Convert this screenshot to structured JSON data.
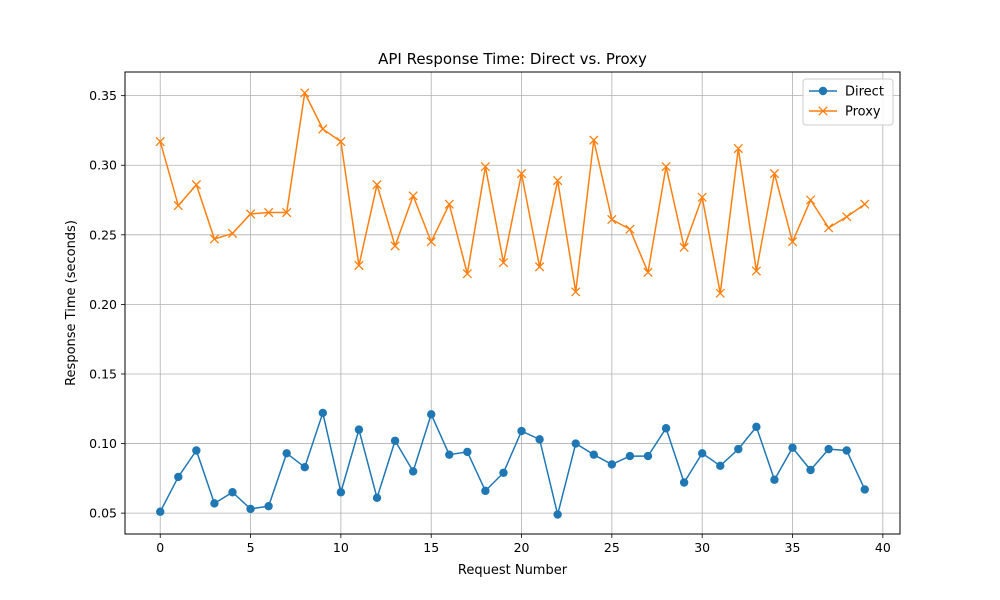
{
  "chart_data": {
    "type": "line",
    "title": "API Response Time: Direct vs. Proxy",
    "xlabel": "Request Number",
    "ylabel": "Response Time (seconds)",
    "xlim": [
      -1.95,
      40.95
    ],
    "ylim": [
      0.035,
      0.367
    ],
    "xticks": [
      0,
      5,
      10,
      15,
      20,
      25,
      30,
      35,
      40
    ],
    "yticks": [
      0.05,
      0.1,
      0.15,
      0.2,
      0.25,
      0.3,
      0.35
    ],
    "xtick_labels": [
      "0",
      "5",
      "10",
      "15",
      "20",
      "25",
      "30",
      "35",
      "40"
    ],
    "ytick_labels": [
      "0.05",
      "0.10",
      "0.15",
      "0.20",
      "0.25",
      "0.30",
      "0.35"
    ],
    "grid": true,
    "legend": "top-right",
    "x": [
      0,
      1,
      2,
      3,
      4,
      5,
      6,
      7,
      8,
      9,
      10,
      11,
      12,
      13,
      14,
      15,
      16,
      17,
      18,
      19,
      20,
      21,
      22,
      23,
      24,
      25,
      26,
      27,
      28,
      29,
      30,
      31,
      32,
      33,
      34,
      35,
      36,
      37,
      38,
      39
    ],
    "series": [
      {
        "name": "Direct",
        "color": "#1f77b4",
        "marker": "circle",
        "values": [
          0.051,
          0.076,
          0.095,
          0.057,
          0.065,
          0.053,
          0.055,
          0.093,
          0.083,
          0.122,
          0.065,
          0.11,
          0.061,
          0.102,
          0.08,
          0.121,
          0.092,
          0.094,
          0.066,
          0.079,
          0.109,
          0.103,
          0.049,
          0.1,
          0.092,
          0.085,
          0.091,
          0.091,
          0.111,
          0.072,
          0.093,
          0.084,
          0.096,
          0.112,
          0.074,
          0.097,
          0.081,
          0.096,
          0.095,
          0.067
        ]
      },
      {
        "name": "Proxy",
        "color": "#ff7f0e",
        "marker": "x",
        "values": [
          0.317,
          0.271,
          0.286,
          0.247,
          0.251,
          0.265,
          0.266,
          0.266,
          0.352,
          0.326,
          0.317,
          0.228,
          0.286,
          0.242,
          0.278,
          0.245,
          0.272,
          0.222,
          0.299,
          0.23,
          0.294,
          0.227,
          0.289,
          0.209,
          0.318,
          0.261,
          0.254,
          0.223,
          0.299,
          0.241,
          0.277,
          0.208,
          0.312,
          0.224,
          0.294,
          0.245,
          0.275,
          0.255,
          0.263,
          0.272
        ]
      }
    ]
  }
}
